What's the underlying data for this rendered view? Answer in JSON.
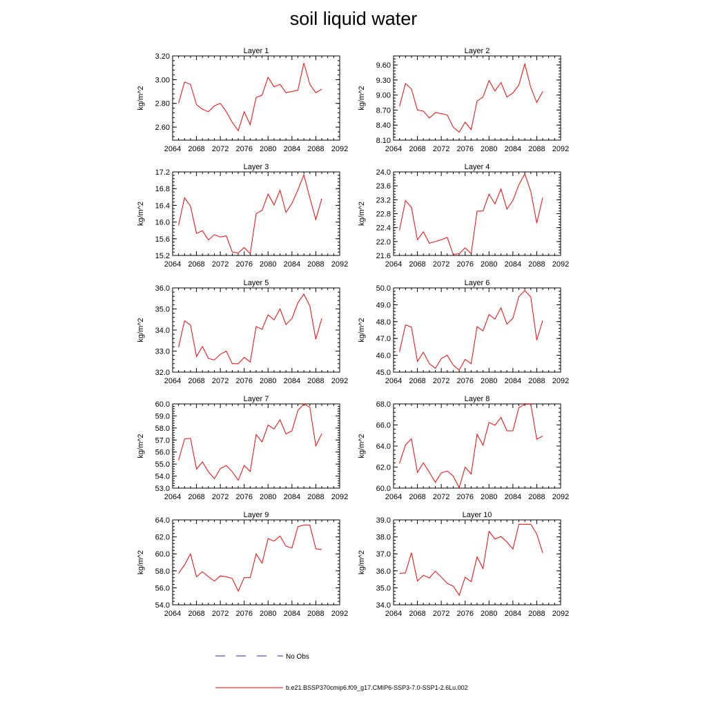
{
  "title": "soil liquid water",
  "legend": {
    "obs_label": "No Obs",
    "model_label": "b.e21.BSSP370cmip6.f09_g17.CMIP6-SSP3-7.0-SSP1-2.6Lu.002",
    "obs_color": "#2222cc",
    "model_color": "#ff0000"
  },
  "chart_data": [
    {
      "type": "line",
      "title": "Layer 1",
      "ylabel": "kg/m^2",
      "xlim": [
        2064,
        2092
      ],
      "xticks": [
        "2064",
        "2068",
        "2072",
        "2076",
        "2080",
        "2084",
        "2088",
        "2092"
      ],
      "ylim": [
        2.49,
        3.2
      ],
      "yticks": [
        "2.60",
        "2.80",
        "3.00",
        "3.20"
      ],
      "x": [
        2065,
        2066,
        2067,
        2068,
        2069,
        2070,
        2071,
        2072,
        2073,
        2074,
        2075,
        2076,
        2077,
        2078,
        2079,
        2080,
        2081,
        2082,
        2083,
        2084,
        2085,
        2086,
        2087,
        2088,
        2089
      ],
      "series": [
        {
          "name": "b.e21.BSSP370cmip6.f09_g17.CMIP6-SSP3-7.0-SSP1-2.6Lu.002",
          "color": "#ff0000",
          "values": [
            2.8,
            2.98,
            2.96,
            2.79,
            2.75,
            2.73,
            2.78,
            2.8,
            2.73,
            2.64,
            2.57,
            2.73,
            2.62,
            2.85,
            2.87,
            3.02,
            2.94,
            2.96,
            2.89,
            2.9,
            2.91,
            3.14,
            2.96,
            2.89,
            2.92
          ]
        }
      ]
    },
    {
      "type": "line",
      "title": "Layer 2",
      "ylabel": "kg/m^2",
      "xlim": [
        2064,
        2092
      ],
      "xticks": [
        "2064",
        "2068",
        "2072",
        "2076",
        "2080",
        "2084",
        "2088",
        "2092"
      ],
      "ylim": [
        8.1,
        9.78
      ],
      "yticks": [
        "8.10",
        "8.40",
        "8.70",
        "9.00",
        "9.30",
        "9.60"
      ],
      "x": [
        2065,
        2066,
        2067,
        2068,
        2069,
        2070,
        2071,
        2072,
        2073,
        2074,
        2075,
        2076,
        2077,
        2078,
        2079,
        2080,
        2081,
        2082,
        2083,
        2084,
        2085,
        2086,
        2087,
        2088,
        2089
      ],
      "series": [
        {
          "name": "b.e21.BSSP370cmip6.f09_g17.CMIP6-SSP3-7.0-SSP1-2.6Lu.002",
          "color": "#ff0000",
          "values": [
            8.77,
            9.23,
            9.12,
            8.7,
            8.68,
            8.54,
            8.65,
            8.63,
            8.6,
            8.36,
            8.26,
            8.46,
            8.31,
            8.88,
            8.96,
            9.29,
            9.08,
            9.25,
            8.96,
            9.04,
            9.2,
            9.62,
            9.15,
            8.85,
            9.07
          ]
        }
      ]
    },
    {
      "type": "line",
      "title": "Layer 3",
      "ylabel": "kg/m^2",
      "xlim": [
        2064,
        2092
      ],
      "xticks": [
        "2064",
        "2068",
        "2072",
        "2076",
        "2080",
        "2084",
        "2088",
        "2092"
      ],
      "ylim": [
        15.2,
        17.2
      ],
      "yticks": [
        "15.2",
        "15.6",
        "16.0",
        "16.4",
        "16.8",
        "17.2"
      ],
      "x": [
        2065,
        2066,
        2067,
        2068,
        2069,
        2070,
        2071,
        2072,
        2073,
        2074,
        2075,
        2076,
        2077,
        2078,
        2079,
        2080,
        2081,
        2082,
        2083,
        2084,
        2085,
        2086,
        2087,
        2088,
        2089
      ],
      "series": [
        {
          "name": "b.e21.BSSP370cmip6.f09_g17.CMIP6-SSP3-7.0-SSP1-2.6Lu.002",
          "color": "#ff0000",
          "values": [
            15.92,
            16.58,
            16.38,
            15.73,
            15.79,
            15.57,
            15.7,
            15.64,
            15.67,
            15.28,
            15.26,
            15.39,
            15.24,
            16.2,
            16.28,
            16.67,
            16.41,
            16.76,
            16.23,
            16.45,
            16.77,
            17.13,
            16.58,
            16.06,
            16.56
          ]
        }
      ]
    },
    {
      "type": "line",
      "title": "Layer 4",
      "ylabel": "kg/m^2",
      "xlim": [
        2064,
        2092
      ],
      "xticks": [
        "2064",
        "2068",
        "2072",
        "2076",
        "2080",
        "2084",
        "2088",
        "2092"
      ],
      "ylim": [
        21.6,
        24.0
      ],
      "yticks": [
        "21.6",
        "22.0",
        "22.4",
        "22.8",
        "23.2",
        "23.6",
        "24.0"
      ],
      "x": [
        2065,
        2066,
        2067,
        2068,
        2069,
        2070,
        2071,
        2072,
        2073,
        2074,
        2075,
        2076,
        2077,
        2078,
        2079,
        2080,
        2081,
        2082,
        2083,
        2084,
        2085,
        2086,
        2087,
        2088,
        2089
      ],
      "series": [
        {
          "name": "b.e21.BSSP370cmip6.f09_g17.CMIP6-SSP3-7.0-SSP1-2.6Lu.002",
          "color": "#ff0000",
          "values": [
            22.32,
            23.18,
            22.98,
            22.05,
            22.28,
            21.95,
            22.0,
            22.05,
            22.12,
            21.63,
            21.65,
            21.82,
            21.65,
            22.87,
            22.88,
            23.36,
            23.08,
            23.51,
            22.93,
            23.18,
            23.63,
            23.94,
            23.44,
            22.53,
            23.26
          ]
        }
      ]
    },
    {
      "type": "line",
      "title": "Layer 5",
      "ylabel": "kg/m^2",
      "xlim": [
        2064,
        2092
      ],
      "xticks": [
        "2064",
        "2068",
        "2072",
        "2076",
        "2080",
        "2084",
        "2088",
        "2092"
      ],
      "ylim": [
        32.0,
        36.0
      ],
      "yticks": [
        "32.0",
        "33.0",
        "34.0",
        "35.0",
        "36.0"
      ],
      "x": [
        2065,
        2066,
        2067,
        2068,
        2069,
        2070,
        2071,
        2072,
        2073,
        2074,
        2075,
        2076,
        2077,
        2078,
        2079,
        2080,
        2081,
        2082,
        2083,
        2084,
        2085,
        2086,
        2087,
        2088,
        2089
      ],
      "series": [
        {
          "name": "b.e21.BSSP370cmip6.f09_g17.CMIP6-SSP3-7.0-SSP1-2.6Lu.002",
          "color": "#ff0000",
          "values": [
            33.18,
            34.44,
            34.24,
            32.74,
            33.22,
            32.65,
            32.58,
            32.85,
            33.0,
            32.4,
            32.4,
            32.7,
            32.48,
            34.16,
            34.04,
            34.72,
            34.48,
            35.0,
            34.26,
            34.55,
            35.3,
            35.7,
            35.14,
            33.56,
            34.55
          ]
        }
      ]
    },
    {
      "type": "line",
      "title": "Layer 6",
      "ylabel": "kg/m^2",
      "xlim": [
        2064,
        2092
      ],
      "xticks": [
        "2064",
        "2068",
        "2072",
        "2076",
        "2080",
        "2084",
        "2088",
        "2092"
      ],
      "ylim": [
        45.0,
        50.0
      ],
      "yticks": [
        "45.0",
        "46.0",
        "47.0",
        "48.0",
        "49.0",
        "50.0"
      ],
      "x": [
        2065,
        2066,
        2067,
        2068,
        2069,
        2070,
        2071,
        2072,
        2073,
        2074,
        2075,
        2076,
        2077,
        2078,
        2079,
        2080,
        2081,
        2082,
        2083,
        2084,
        2085,
        2086,
        2087,
        2088,
        2089
      ],
      "series": [
        {
          "name": "b.e21.BSSP370cmip6.f09_g17.CMIP6-SSP3-7.0-SSP1-2.6Lu.002",
          "color": "#ff0000",
          "values": [
            46.2,
            47.8,
            47.68,
            45.64,
            46.18,
            45.5,
            45.22,
            45.8,
            46.0,
            45.42,
            45.12,
            45.76,
            45.5,
            47.7,
            47.45,
            48.42,
            48.15,
            48.82,
            47.85,
            48.2,
            49.48,
            49.85,
            49.45,
            46.9,
            48.07
          ]
        }
      ]
    },
    {
      "type": "line",
      "title": "Layer 7",
      "ylabel": "kg/m^2",
      "xlim": [
        2064,
        2092
      ],
      "xticks": [
        "2064",
        "2068",
        "2072",
        "2076",
        "2080",
        "2084",
        "2088",
        "2092"
      ],
      "ylim": [
        53.0,
        60.0
      ],
      "yticks": [
        "53.0",
        "54.0",
        "55.0",
        "56.0",
        "57.0",
        "58.0",
        "59.0",
        "60.0"
      ],
      "x": [
        2065,
        2066,
        2067,
        2068,
        2069,
        2070,
        2071,
        2072,
        2073,
        2074,
        2075,
        2076,
        2077,
        2078,
        2079,
        2080,
        2081,
        2082,
        2083,
        2084,
        2085,
        2086,
        2087,
        2088,
        2089
      ],
      "series": [
        {
          "name": "b.e21.BSSP370cmip6.f09_g17.CMIP6-SSP3-7.0-SSP1-2.6Lu.002",
          "color": "#ff0000",
          "values": [
            55.3,
            57.08,
            57.14,
            54.58,
            55.18,
            54.36,
            53.78,
            54.62,
            54.88,
            54.36,
            53.66,
            54.88,
            54.38,
            57.44,
            56.84,
            58.24,
            57.92,
            58.68,
            57.5,
            57.76,
            59.46,
            60.0,
            59.72,
            56.52,
            57.52
          ]
        }
      ]
    },
    {
      "type": "line",
      "title": "Layer 8",
      "ylabel": "kg/m^2",
      "xlim": [
        2064,
        2092
      ],
      "xticks": [
        "2064",
        "2068",
        "2072",
        "2076",
        "2080",
        "2084",
        "2088",
        "2092"
      ],
      "ylim": [
        60.0,
        68.0
      ],
      "yticks": [
        "60.0",
        "62.0",
        "64.0",
        "66.0",
        "68.0"
      ],
      "x": [
        2065,
        2066,
        2067,
        2068,
        2069,
        2070,
        2071,
        2072,
        2073,
        2074,
        2075,
        2076,
        2077,
        2078,
        2079,
        2080,
        2081,
        2082,
        2083,
        2084,
        2085,
        2086,
        2087,
        2088,
        2089
      ],
      "series": [
        {
          "name": "b.e21.BSSP370cmip6.f09_g17.CMIP6-SSP3-7.0-SSP1-2.6Lu.002",
          "color": "#ff0000",
          "values": [
            62.35,
            64.1,
            64.68,
            61.5,
            62.4,
            61.5,
            60.56,
            61.45,
            61.62,
            61.15,
            60.04,
            62.0,
            61.34,
            65.12,
            64.08,
            66.24,
            65.96,
            66.72,
            65.44,
            65.44,
            67.64,
            67.96,
            67.98,
            64.64,
            64.96
          ]
        }
      ]
    },
    {
      "type": "line",
      "title": "Layer 9",
      "ylabel": "kg/m^2",
      "xlim": [
        2064,
        2092
      ],
      "xticks": [
        "2064",
        "2068",
        "2072",
        "2076",
        "2080",
        "2084",
        "2088",
        "2092"
      ],
      "ylim": [
        54.0,
        64.0
      ],
      "yticks": [
        "54.0",
        "56.0",
        "58.0",
        "60.0",
        "62.0",
        "64.0"
      ],
      "x": [
        2065,
        2066,
        2067,
        2068,
        2069,
        2070,
        2071,
        2072,
        2073,
        2074,
        2075,
        2076,
        2077,
        2078,
        2079,
        2080,
        2081,
        2082,
        2083,
        2084,
        2085,
        2086,
        2087,
        2088,
        2089
      ],
      "series": [
        {
          "name": "b.e21.BSSP370cmip6.f09_g17.CMIP6-SSP3-7.0-SSP1-2.6Lu.002",
          "color": "#ff0000",
          "values": [
            57.7,
            58.7,
            60.0,
            57.3,
            57.9,
            57.3,
            56.8,
            57.4,
            57.3,
            57.1,
            55.6,
            57.2,
            57.2,
            60.0,
            58.9,
            61.8,
            61.5,
            62.1,
            60.9,
            60.7,
            63.2,
            63.4,
            63.4,
            60.6,
            60.5
          ]
        }
      ]
    },
    {
      "type": "line",
      "title": "Layer 10",
      "ylabel": "kg/m^2",
      "xlim": [
        2064,
        2092
      ],
      "xticks": [
        "2064",
        "2068",
        "2072",
        "2076",
        "2080",
        "2084",
        "2088",
        "2092"
      ],
      "ylim": [
        34.0,
        39.0
      ],
      "yticks": [
        "34.0",
        "35.0",
        "36.0",
        "37.0",
        "38.0",
        "39.0"
      ],
      "x": [
        2065,
        2066,
        2067,
        2068,
        2069,
        2070,
        2071,
        2072,
        2073,
        2074,
        2075,
        2076,
        2077,
        2078,
        2079,
        2080,
        2081,
        2082,
        2083,
        2084,
        2085,
        2086,
        2087,
        2088,
        2089
      ],
      "series": [
        {
          "name": "b.e21.BSSP370cmip6.f09_g17.CMIP6-SSP3-7.0-SSP1-2.6Lu.002",
          "color": "#ff0000",
          "values": [
            35.85,
            35.88,
            37.07,
            35.4,
            35.74,
            35.58,
            35.98,
            35.64,
            35.26,
            35.1,
            34.56,
            35.62,
            35.36,
            36.82,
            36.14,
            38.32,
            37.88,
            38.02,
            37.7,
            37.28,
            38.74,
            38.74,
            38.74,
            38.17,
            37.06
          ]
        }
      ]
    }
  ]
}
